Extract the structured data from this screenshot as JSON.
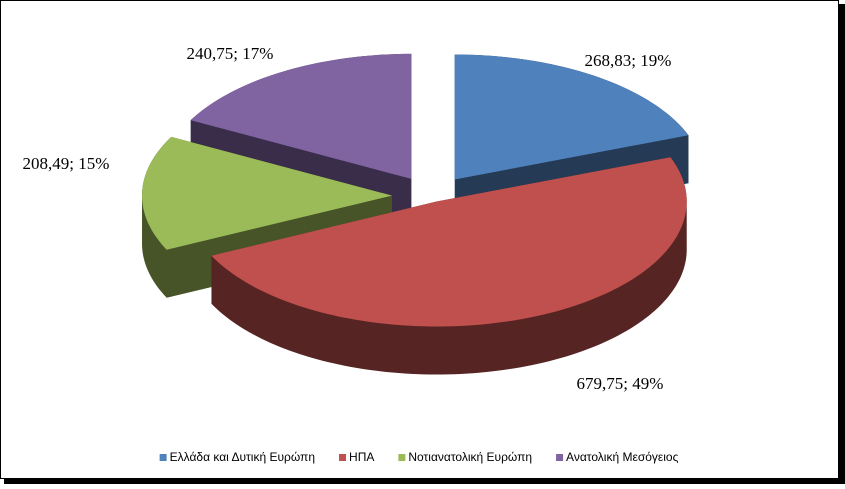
{
  "chart_data": {
    "type": "pie3d",
    "categories": [
      "Ελλάδα και Δυτική Ευρώπη",
      "ΗΠΑ",
      "Νοτιανατολική Ευρώπη",
      "Ανατολική Μεσόγειος"
    ],
    "values": [
      268.83,
      679.75,
      208.49,
      240.75
    ],
    "value_labels": [
      "268,83; 19%",
      "679,75; 49%",
      "208,49; 15%",
      "240,75; 17%"
    ],
    "colors": [
      "#4f81bd",
      "#c0504d",
      "#9bbb59",
      "#8064a2"
    ],
    "legend": "bottom"
  }
}
